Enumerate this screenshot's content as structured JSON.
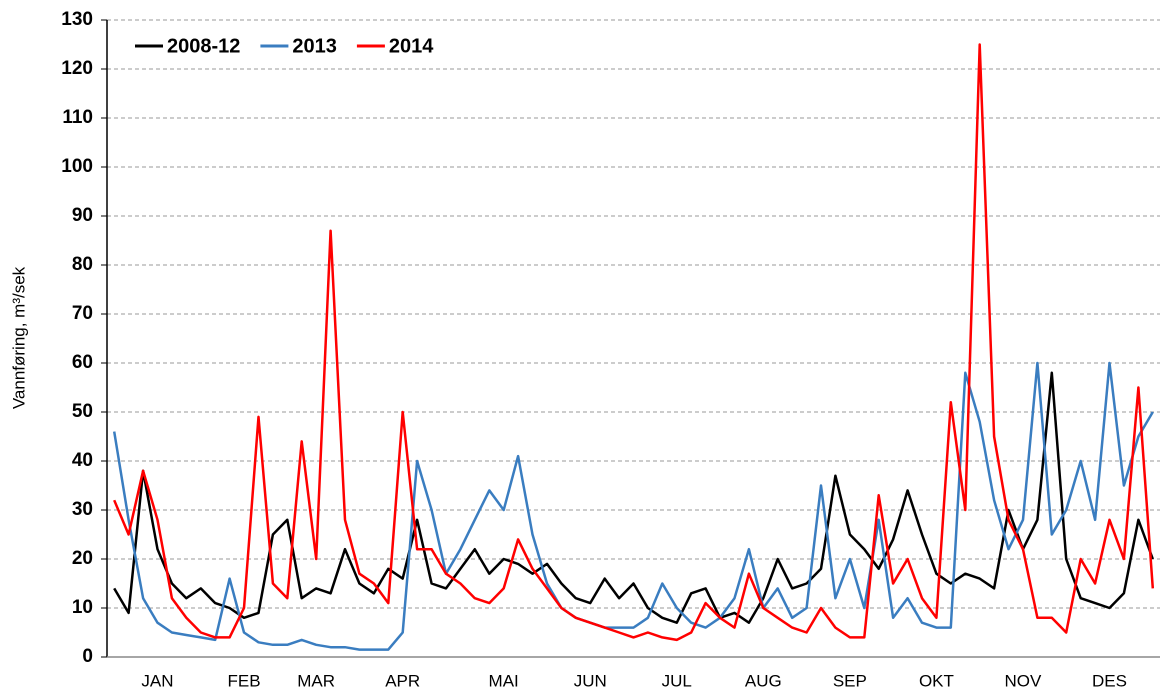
{
  "chart_data": {
    "type": "line",
    "y_label": "Vannføring, m³/sek",
    "categories": [
      null,
      null,
      null,
      "JAN",
      null,
      null,
      null,
      null,
      null,
      "FEB",
      null,
      null,
      null,
      null,
      "MAR",
      null,
      null,
      null,
      null,
      null,
      "APR",
      null,
      null,
      null,
      null,
      null,
      null,
      "MAI",
      null,
      null,
      null,
      null,
      null,
      "JUN",
      null,
      null,
      null,
      null,
      null,
      "JUL",
      null,
      null,
      null,
      null,
      null,
      "AUG",
      null,
      null,
      null,
      null,
      null,
      "SEP",
      null,
      null,
      null,
      null,
      null,
      "OKT",
      null,
      null,
      null,
      null,
      null,
      "NOV",
      null,
      null,
      null,
      null,
      null,
      "DES",
      null,
      null,
      null
    ],
    "series": [
      {
        "name": "2008-12",
        "color": "#000000",
        "values": [
          14,
          9,
          38,
          22,
          15,
          12,
          14,
          11,
          10,
          8,
          9,
          25,
          28,
          12,
          14,
          13,
          22,
          15,
          13,
          18,
          16,
          28,
          15,
          14,
          18,
          22,
          17,
          20,
          19,
          17,
          19,
          15,
          12,
          11,
          16,
          12,
          15,
          10,
          8,
          7,
          13,
          14,
          8,
          9,
          7,
          12,
          20,
          14,
          15,
          18,
          37,
          25,
          22,
          18,
          24,
          34,
          25,
          17,
          15,
          17,
          16,
          14,
          30,
          22,
          28,
          58,
          20,
          12,
          11,
          10,
          13,
          28,
          20
        ]
      },
      {
        "name": "2013",
        "color": "#3a7dc0",
        "values": [
          46,
          28,
          12,
          7,
          5,
          4.5,
          4,
          3.5,
          16,
          5,
          3,
          2.5,
          2.5,
          3.5,
          2.5,
          2,
          2,
          1.5,
          1.5,
          1.5,
          5,
          40,
          30,
          17,
          22,
          28,
          34,
          30,
          41,
          25,
          15,
          10,
          8,
          7,
          6,
          6,
          6,
          8,
          15,
          10,
          7,
          6,
          8,
          12,
          22,
          10,
          14,
          8,
          10,
          35,
          12,
          20,
          10,
          28,
          8,
          12,
          7,
          6,
          6,
          58,
          48,
          32,
          22,
          28,
          60,
          25,
          30,
          40,
          28,
          60,
          35,
          45,
          50
        ]
      },
      {
        "name": "2014",
        "color": "#ff0000",
        "values": [
          32,
          25,
          38,
          28,
          12,
          8,
          5,
          4,
          4,
          10,
          49,
          15,
          12,
          44,
          20,
          87,
          28,
          17,
          15,
          11,
          50,
          22,
          22,
          17,
          15,
          12,
          11,
          14,
          24,
          18,
          14,
          10,
          8,
          7,
          6,
          5,
          4,
          5,
          4,
          3.5,
          5,
          11,
          8,
          6,
          17,
          10,
          8,
          6,
          5,
          10,
          6,
          4,
          4,
          33,
          15,
          20,
          12,
          8,
          52,
          30,
          125,
          45,
          28,
          22,
          8,
          8,
          5,
          20,
          15,
          28,
          20,
          55,
          14
        ]
      }
    ],
    "ylim": [
      0,
      130
    ],
    "yticks": [
      0,
      10,
      20,
      30,
      40,
      50,
      60,
      70,
      80,
      90,
      100,
      110,
      120,
      130
    ],
    "grid": true,
    "legend": "top-left"
  }
}
